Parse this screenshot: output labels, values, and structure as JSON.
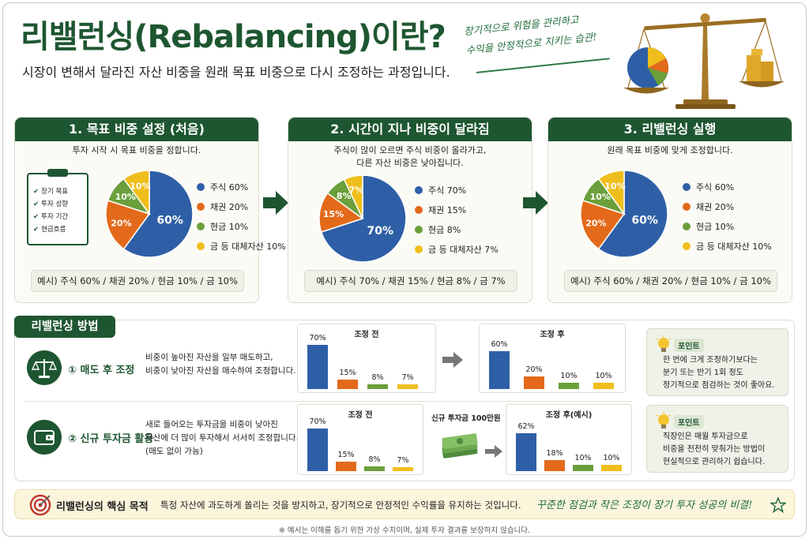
{
  "header": {
    "title": "리밸런싱(Rebalancing)이란?",
    "subtitle": "시장이 변해서 달라진 자산 비중을 원래 목표 비중으로 다시 조정하는 과정입니다.",
    "handwritten": [
      "장기적으로 위험을 관리하고",
      "수익을 안정적으로 지키는 습관!"
    ]
  },
  "colors": {
    "stock": "#2e5fa6",
    "bond": "#e36a1a",
    "cash": "#6a9f3a",
    "gold": "#f0be1c",
    "brand": "#1e5631"
  },
  "steps": [
    {
      "title": "1. 목표 비중 설정 (처음)",
      "desc": [
        "투자 시작 시 목표 비중을 정합니다."
      ],
      "checklist": [
        "장기 목표",
        "투자 성향",
        "투자 기간",
        "현금흐름"
      ],
      "legend": [
        "주식 60%",
        "채권 20%",
        "현금 10%",
        "금 등 대체자산 10%"
      ],
      "example": "예시) 주식 60% / 채권 20% / 현금 10% / 금 10%"
    },
    {
      "title": "2. 시간이 지나 비중이 달라짐",
      "desc": [
        "주식이 많이 오르면 주식 비중이 올라가고,",
        "다른 자산 비중은 낮아집니다."
      ],
      "legend": [
        "주식 70%",
        "채권 15%",
        "현금 8%",
        "금 등 대체자산 7%"
      ],
      "example": "예시) 주식 70% / 채권 15% / 현금 8% / 금 7%"
    },
    {
      "title": "3. 리밸런싱 실행",
      "desc": [
        "원래 목표 비중에 맞게 조정합니다."
      ],
      "legend": [
        "주식 60%",
        "채권 20%",
        "현금 10%",
        "금 등 대체자산 10%"
      ],
      "example": "예시) 주식 60% / 채권 20% / 현금 10% / 금 10%"
    }
  ],
  "methods": {
    "title": "리밸런싱 방법",
    "items": [
      {
        "name": "① 매도 후 조정",
        "desc": [
          "비중이 높아진 자산을 일부 매도하고,",
          "비중이 낮아진 자산을 매수하여 조정합니다."
        ],
        "before_title": "조정 전",
        "after_title": "조정 후",
        "point_label": "포인트",
        "point": [
          "한 번에 크게 조정하기보다는",
          "분기 또는 반기 1회 정도",
          "정기적으로 점검하는 것이 좋아요."
        ]
      },
      {
        "name": "② 신규 투자금 활용",
        "desc": [
          "새로 들어오는 투자금을 비중이 낮아진",
          "자산에 더 많이 투자해서 서서히 조정합니다.",
          "(매도 없이 가능)"
        ],
        "before_title": "조정 전",
        "money_label": "신규 투자금 100만원",
        "after_title": "조정 후(예시)",
        "point_label": "포인트",
        "point": [
          "직장인은 매월 투자금으로",
          "비중을 천천히 맞춰가는 방법이",
          "현실적으로 관리하기 쉽습니다."
        ]
      }
    ]
  },
  "core": {
    "label": "리밸런싱의 핵심 목적",
    "text": "특정 자산에 과도하게 쏠리는 것을 방지하고, 장기적으로 안정적인 수익률을 유지하는 것입니다.",
    "handwritten": "꾸준한 점검과 작은 조정이 장기 투자 성공의 비결!"
  },
  "footnote": "※ 예시는 이해를 돕기 위한 가상 수치이며, 실제 투자 결과를 보장하지 않습니다.",
  "chart_data": [
    {
      "type": "pie",
      "categories": [
        "주식",
        "채권",
        "현금",
        "금 등 대체자산"
      ],
      "values": [
        60,
        20,
        10,
        10
      ]
    },
    {
      "type": "pie",
      "categories": [
        "주식",
        "채권",
        "현금",
        "금 등 대체자산"
      ],
      "values": [
        70,
        15,
        8,
        7
      ]
    },
    {
      "type": "pie",
      "categories": [
        "주식",
        "채권",
        "현금",
        "금 등 대체자산"
      ],
      "values": [
        60,
        20,
        10,
        10
      ]
    },
    {
      "type": "bar",
      "title": "조정 전",
      "values": [
        70,
        15,
        8,
        7
      ]
    },
    {
      "type": "bar",
      "title": "조정 후",
      "values": [
        60,
        20,
        10,
        10
      ]
    },
    {
      "type": "bar",
      "title": "조정 전",
      "values": [
        70,
        15,
        8,
        7
      ]
    },
    {
      "type": "bar",
      "title": "조정 후(예시)",
      "values": [
        62,
        18,
        10,
        10
      ]
    }
  ]
}
